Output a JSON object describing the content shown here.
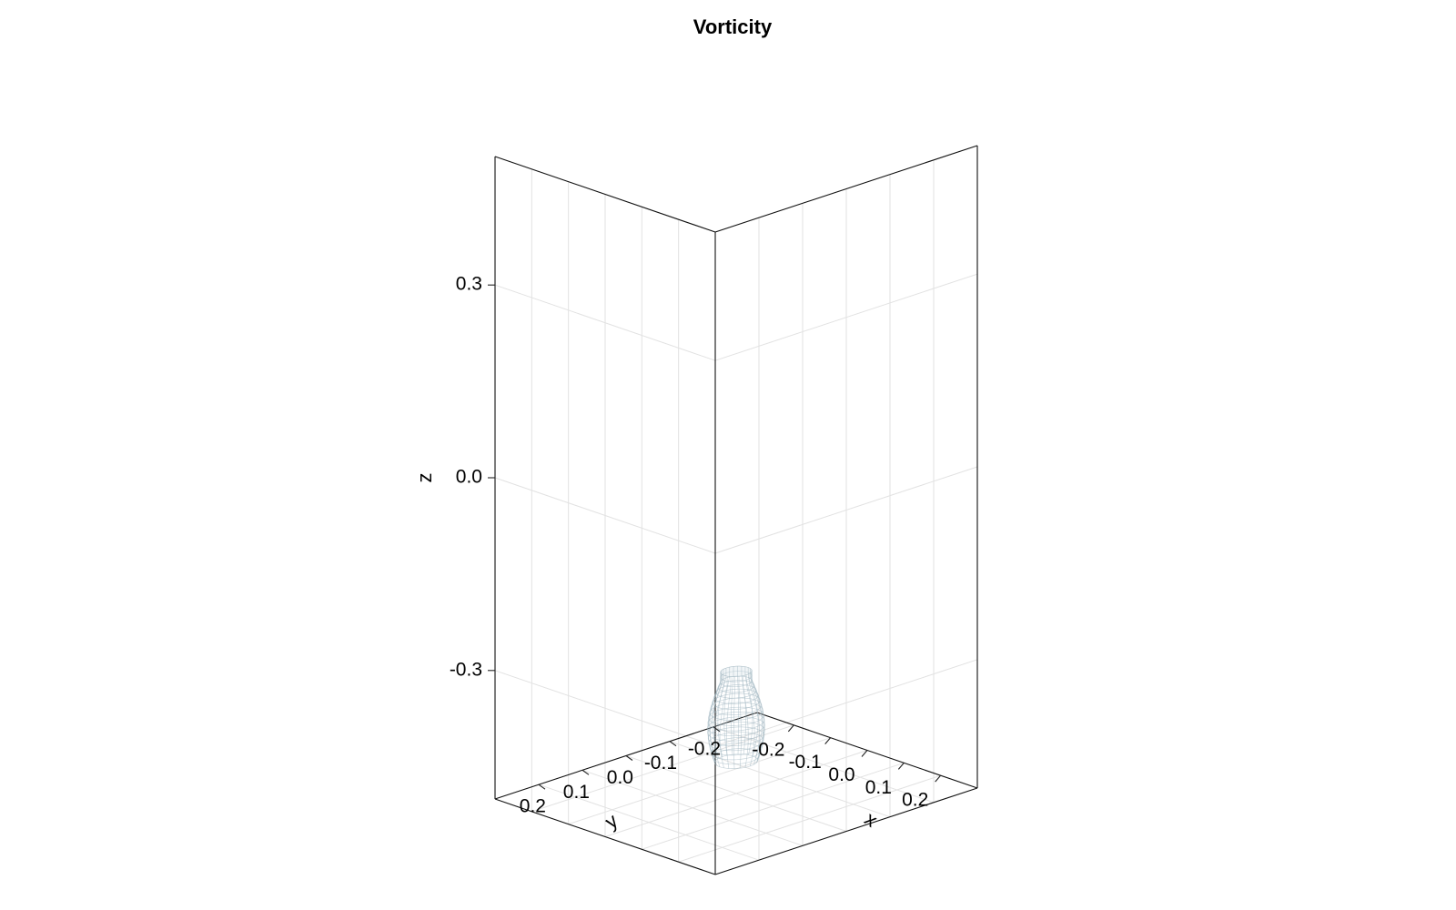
{
  "chart_data": {
    "type": "scatter3d",
    "title": "Vorticity",
    "xlabel": "x",
    "ylabel": "y",
    "zlabel": "z",
    "xlim": [
      -0.3,
      0.3
    ],
    "ylim": [
      -0.3,
      0.3
    ],
    "zlim": [
      -0.5,
      0.5
    ],
    "x_ticks": [
      "-0.2",
      "-0.1",
      "0.0",
      "0.1",
      "0.2"
    ],
    "y_ticks": [
      "-0.2",
      "-0.1",
      "0.0",
      "0.1",
      "0.2"
    ],
    "z_ticks": [
      "-0.3",
      "0.0",
      "0.3"
    ],
    "x_tick_values": [
      -0.2,
      -0.1,
      0.0,
      0.1,
      0.2
    ],
    "y_tick_values": [
      -0.2,
      -0.1,
      0.0,
      0.1,
      0.2
    ],
    "z_tick_values": [
      -0.3,
      0.0,
      0.3
    ],
    "vortex_ring": {
      "center": [
        0.0,
        0.0,
        -0.38
      ],
      "radius": 0.05,
      "height_range": [
        -0.45,
        -0.31
      ],
      "color": "#9fb4bf"
    },
    "grid": true
  }
}
